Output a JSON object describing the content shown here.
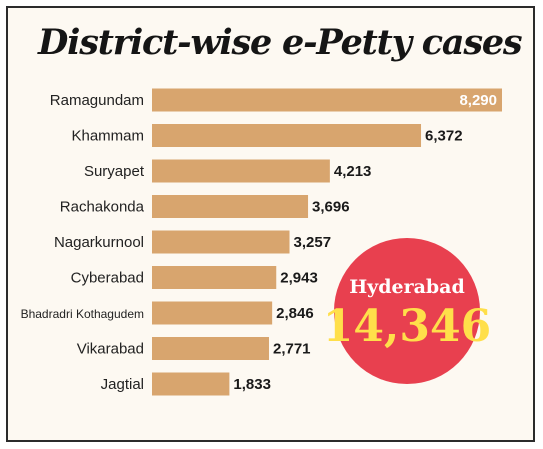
{
  "chart_data": {
    "type": "bar",
    "orientation": "horizontal",
    "title": "District-wise e-Petty cases",
    "categories": [
      "Ramagundam",
      "Khammam",
      "Suryapet",
      "Rachakonda",
      "Nagarkurnool",
      "Cyberabad",
      "Bhadradri Kothagudem",
      "Vikarabad",
      "Jagtial"
    ],
    "values": [
      8290,
      6372,
      4213,
      3696,
      3257,
      2943,
      2846,
      2771,
      1833
    ],
    "value_labels": [
      "8,290",
      "6,372",
      "4,213",
      "3,696",
      "3,257",
      "2,943",
      "2,846",
      "2,771",
      "1,833"
    ],
    "xlim": [
      0,
      8290
    ],
    "grid": false,
    "legend": "none",
    "bar_color": "#d8a56e",
    "callout": {
      "label": "Hyderabad",
      "value": 14346,
      "value_label": "14,346",
      "color": "#e8404f",
      "value_color": "#ffdf4a"
    }
  }
}
